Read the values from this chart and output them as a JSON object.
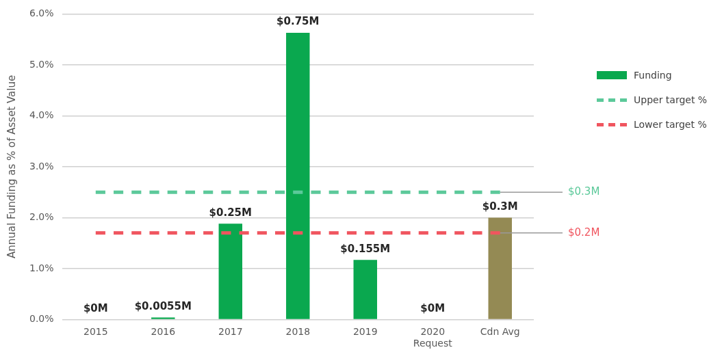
{
  "chart_data": {
    "type": "bar",
    "ylabel": "Annual Funding as % of Asset Value",
    "categories": [
      "2015",
      "2016",
      "2017",
      "2018",
      "2019",
      "2020\nRequest",
      "Cdn Avg"
    ],
    "series": [
      {
        "name": "Funding",
        "type": "bar",
        "color": "#0aa84f",
        "colors": [
          "#0aa84f",
          "#0aa84f",
          "#0aa84f",
          "#0aa84f",
          "#0aa84f",
          "#0aa84f",
          "#948a54"
        ],
        "values": [
          0,
          0.04,
          1.88,
          5.63,
          1.17,
          0,
          2.0
        ]
      },
      {
        "name": "Upper target %",
        "type": "line",
        "color": "#5cc99a",
        "line_style": "dashed",
        "values": [
          2.5,
          2.5,
          2.5,
          2.5,
          2.5,
          2.5,
          2.5
        ]
      },
      {
        "name": "Lower target %",
        "type": "line",
        "color": "#f0555f",
        "line_style": "dashed",
        "values": [
          1.7,
          1.7,
          1.7,
          1.7,
          1.7,
          1.7,
          1.7
        ]
      }
    ],
    "annotations": [
      {
        "text": "$0M",
        "x": "2015",
        "y": 0
      },
      {
        "text": "$0.0055M",
        "x": "2016",
        "y": 0.04
      },
      {
        "text": "$0.25M",
        "x": "2017",
        "y": 1.88
      },
      {
        "text": "$0.75M",
        "x": "2018",
        "y": 5.63
      },
      {
        "text": "$0.155M",
        "x": "2019",
        "y": 1.17
      },
      {
        "text": "$0M",
        "x": "2020\nRequest",
        "y": 0
      },
      {
        "text": "$0.3M",
        "x": "Cdn Avg",
        "y": 2.0
      },
      {
        "text": "$0.3M",
        "x": "Cdn Avg",
        "y": 2.5
      },
      {
        "text": "$0.2M",
        "x": "Cdn Avg",
        "y": 1.7
      }
    ],
    "ylim": [
      0,
      6
    ],
    "yticks": [
      {
        "value": 0,
        "label": "0.0%"
      },
      {
        "value": 1,
        "label": "1.0%"
      },
      {
        "value": 2,
        "label": "2.0%"
      },
      {
        "value": 3,
        "label": "3.0%"
      },
      {
        "value": 4,
        "label": "4.0%"
      },
      {
        "value": 5,
        "label": "5.0%"
      },
      {
        "value": 6,
        "label": "6.0%"
      }
    ],
    "grid": "y",
    "legend": "right",
    "marker": "none"
  }
}
